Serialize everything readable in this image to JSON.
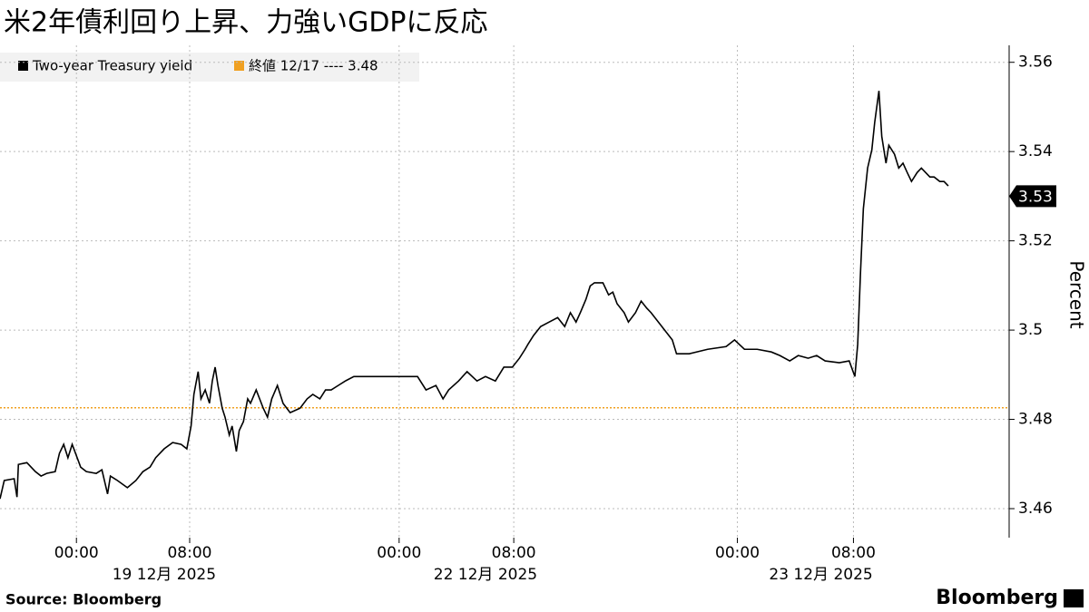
{
  "chart_data": {
    "type": "line",
    "title": "米2年債利回り上昇、力強いGDPに反応",
    "y_label": "Percent",
    "source": "Source:  Bloomberg",
    "brand": "Bloomberg",
    "x": [
      -5.4,
      -5.1,
      -4.4,
      -4.2,
      -4.1,
      -3.5,
      -2.9,
      -2.5,
      -2.1,
      -1.5,
      -1.2,
      -0.9,
      -0.6,
      -0.3,
      0.3,
      0.7,
      1.4,
      1.8,
      2.2,
      2.4,
      2.9,
      3.6,
      4.2,
      4.7,
      5.2,
      5.6,
      6.2,
      6.8,
      7.4,
      7.8,
      8.1,
      8.3,
      8.6,
      8.8,
      9.1,
      9.4,
      9.6,
      9.8,
      10.0,
      10.3,
      10.5,
      10.8,
      11.0,
      11.3,
      11.5,
      11.8,
      12.1,
      12.3,
      12.7,
      13.2,
      13.5,
      13.8,
      14.2,
      14.6,
      15.1,
      15.8,
      16.3,
      16.7,
      17.2,
      17.6,
      18.0,
      18.5,
      19.0,
      19.6,
      20.3,
      21.5,
      24.1,
      24.7,
      25.4,
      25.9,
      26.3,
      27.0,
      27.6,
      28.3,
      28.9,
      29.6,
      30.2,
      30.8,
      31.3,
      31.7,
      31.9,
      32.3,
      32.8,
      33.4,
      34.0,
      34.5,
      34.9,
      35.3,
      35.6,
      36.0,
      36.3,
      36.6,
      37.2,
      37.6,
      37.9,
      38.2,
      38.7,
      39.0,
      39.5,
      39.9,
      40.3,
      40.6,
      42.1,
      42.4,
      43.3,
      44.6,
      45.9,
      46.5,
      47.2,
      48.1,
      49.1,
      49.7,
      50.4,
      51.0,
      51.7,
      52.3,
      52.9,
      53.9,
      54.6,
      55.0,
      55.2,
      55.4,
      55.6,
      55.9,
      56.2,
      56.4,
      56.7,
      56.9,
      57.2,
      57.4,
      57.8,
      58.1,
      58.4,
      58.7,
      59.0,
      59.4,
      59.7,
      60.0,
      60.3,
      60.6,
      61.0,
      61.3,
      61.6
    ],
    "series": [
      {
        "name": "Two-year Treasury yield",
        "color": "#000000",
        "values": [
          3.4622,
          3.4663,
          3.4667,
          3.4626,
          3.4699,
          3.4703,
          3.4683,
          3.4673,
          3.4679,
          3.4683,
          3.4724,
          3.4744,
          3.4714,
          3.4744,
          3.4693,
          3.4683,
          3.4679,
          3.4687,
          3.4633,
          3.4673,
          3.4663,
          3.4647,
          3.4663,
          3.4683,
          3.4693,
          3.4714,
          3.4734,
          3.4748,
          3.4744,
          3.4734,
          3.4785,
          3.4856,
          3.4907,
          3.4846,
          3.4866,
          3.4836,
          3.4886,
          3.4917,
          3.4876,
          3.4825,
          3.4805,
          3.4765,
          3.4785,
          3.4728,
          3.4775,
          3.4795,
          3.4846,
          3.4836,
          3.4866,
          3.4825,
          3.4805,
          3.4846,
          3.4876,
          3.4836,
          3.4815,
          3.4825,
          3.4846,
          3.4856,
          3.4846,
          3.4866,
          3.4866,
          3.4876,
          3.4886,
          3.4896,
          3.4896,
          3.4896,
          3.4896,
          3.4866,
          3.4876,
          3.4846,
          3.4866,
          3.4886,
          3.4907,
          3.4886,
          3.4896,
          3.4886,
          3.4917,
          3.4917,
          3.4937,
          3.4957,
          3.4968,
          3.4988,
          3.5008,
          3.5018,
          3.5028,
          3.5008,
          3.5039,
          3.5018,
          3.5039,
          3.5069,
          3.5099,
          3.5106,
          3.5106,
          3.5079,
          3.5085,
          3.5059,
          3.5039,
          3.5018,
          3.5039,
          3.5065,
          3.5049,
          3.5039,
          3.4978,
          3.4947,
          3.4947,
          3.4957,
          3.4963,
          3.4978,
          3.4957,
          3.4957,
          3.4951,
          3.4943,
          3.4931,
          3.4943,
          3.4937,
          3.4943,
          3.4931,
          3.4927,
          3.4931,
          3.4896,
          3.4968,
          3.513,
          3.5272,
          3.5363,
          3.5404,
          3.5465,
          3.5536,
          3.5434,
          3.5374,
          3.5414,
          3.5394,
          3.5363,
          3.5374,
          3.5353,
          3.5333,
          3.5353,
          3.5363,
          3.5353,
          3.5343,
          3.5343,
          3.5333,
          3.5333,
          3.5323
        ]
      }
    ],
    "last_value": 3.53,
    "reference_line": {
      "value": 3.4826,
      "label": "終値 12/17 ---- 3.48",
      "color": "#f0a020"
    },
    "xlim": [
      -5.4,
      65.9
    ],
    "ylim": [
      3.4535,
      3.5638
    ],
    "yticks": [
      3.46,
      3.48,
      3.5,
      3.52,
      3.54,
      3.56
    ],
    "xticks": [
      {
        "value": 0,
        "label": "00:00"
      },
      {
        "value": 8,
        "label": "08:00"
      },
      {
        "value": 22.8,
        "label": "00:00"
      },
      {
        "value": 30.9,
        "label": "08:00"
      },
      {
        "value": 46.7,
        "label": "00:00"
      },
      {
        "value": 54.9,
        "label": "08:00"
      }
    ],
    "date_labels": [
      {
        "value": 6.2,
        "label": "19 12月 2025"
      },
      {
        "value": 28.9,
        "label": "22 12月 2025"
      },
      {
        "value": 52.6,
        "label": "23 12月 2025"
      }
    ],
    "grid": true
  }
}
